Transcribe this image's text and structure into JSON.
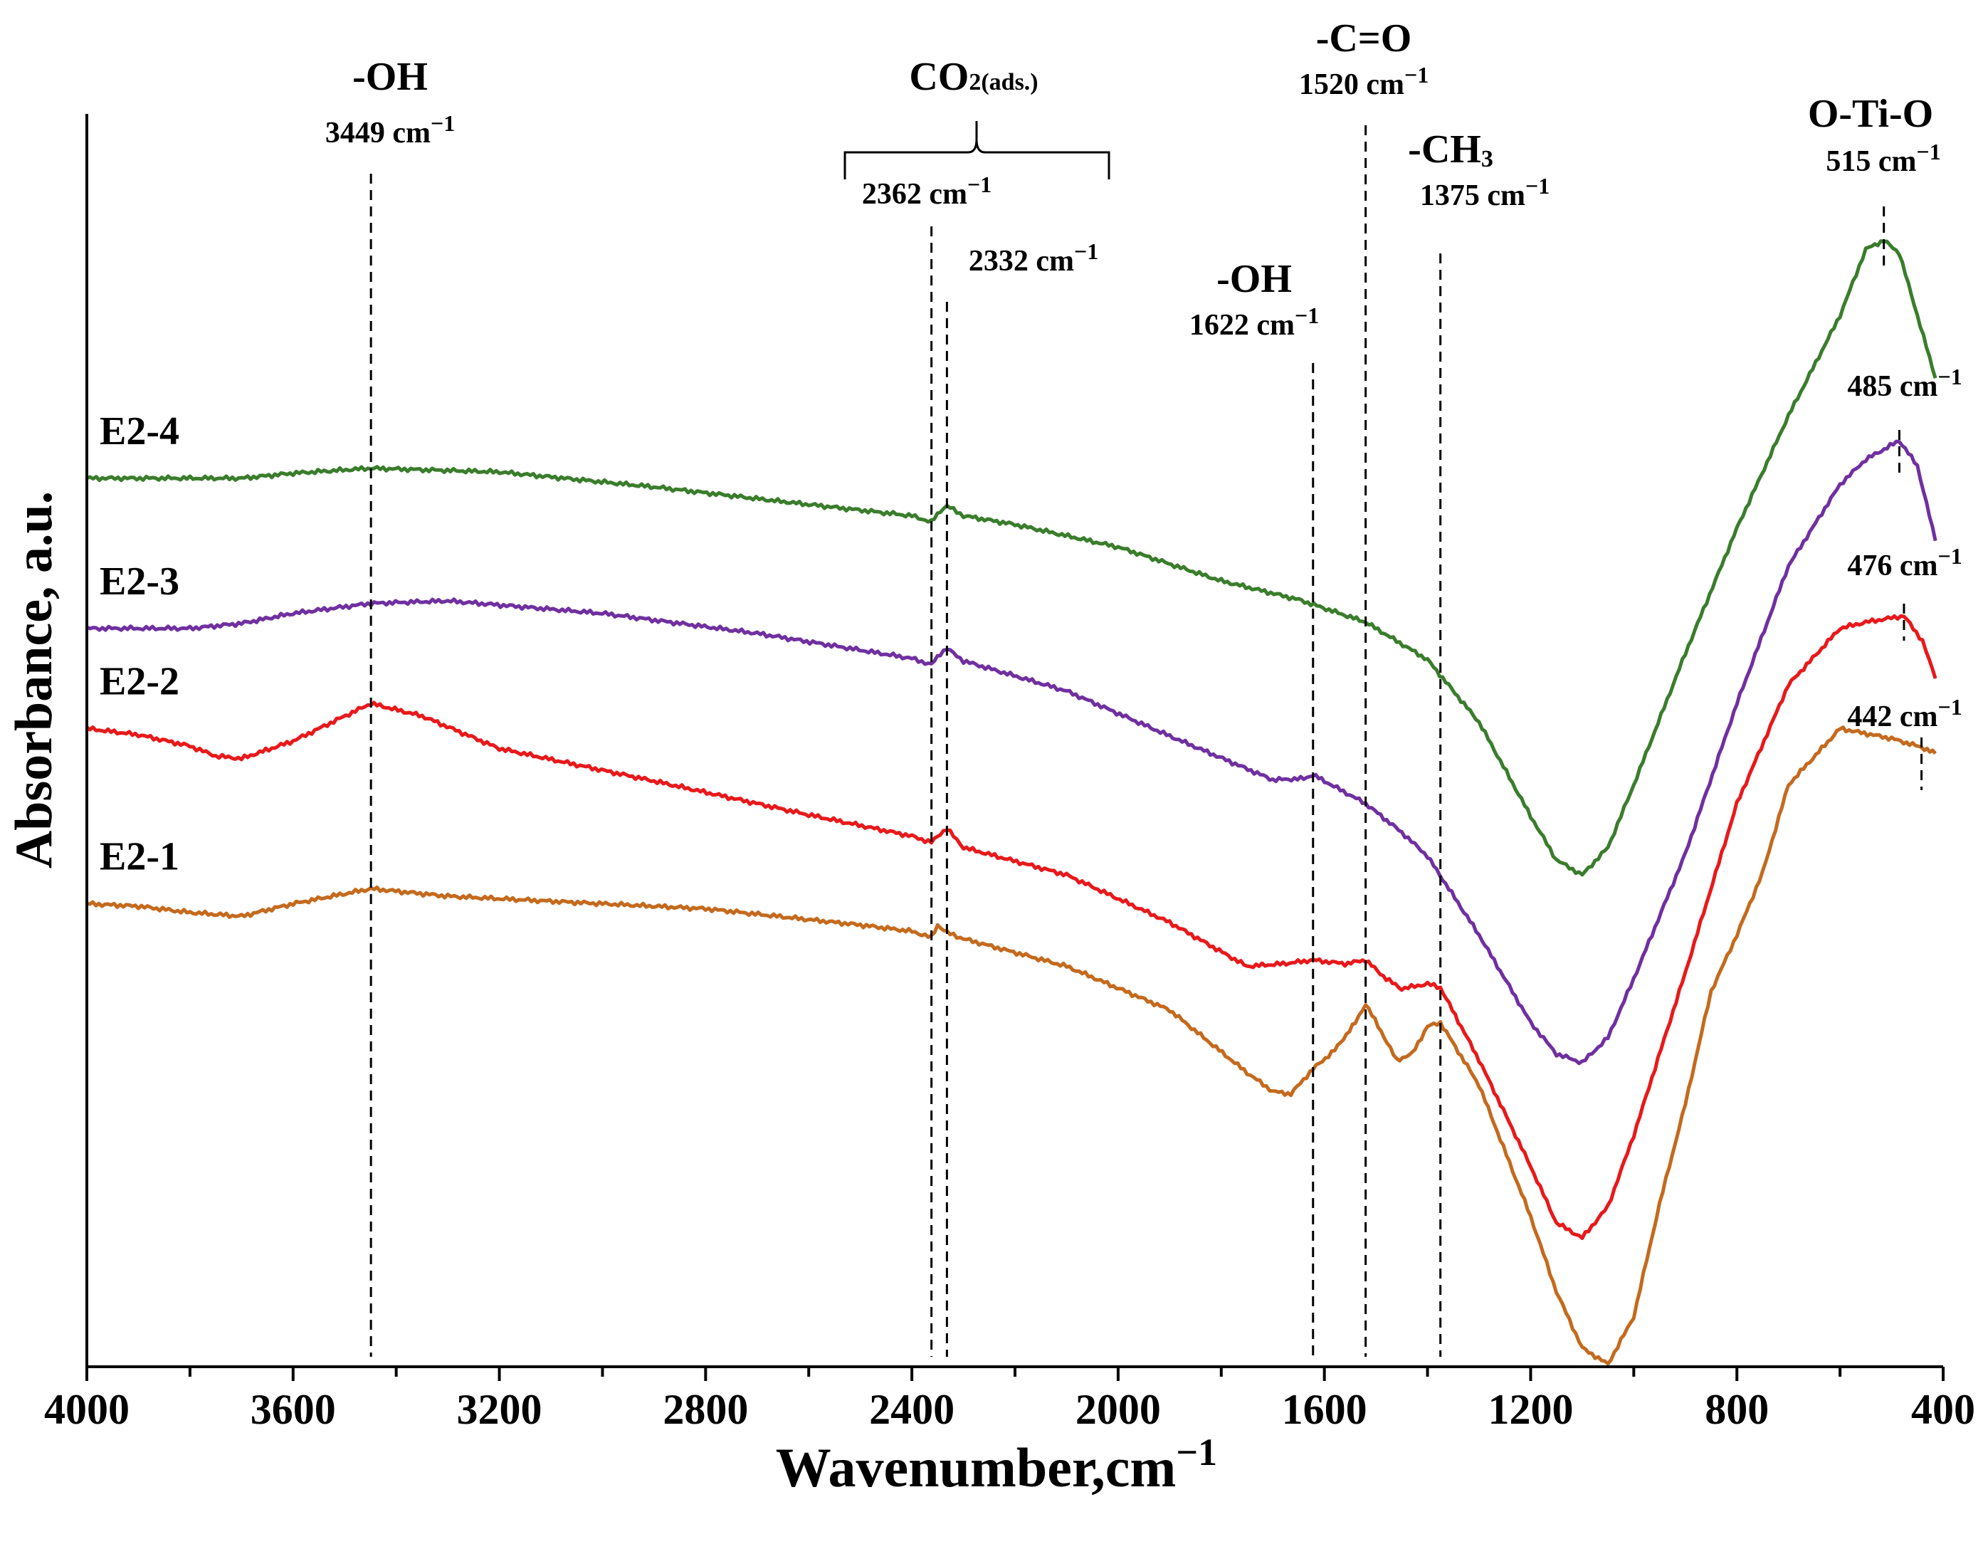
{
  "chart_data": {
    "type": "line",
    "title": "",
    "xlabel": "Wavenumber,cm",
    "xlabel_superscript": "−1",
    "ylabel": "Absorbance, a.u.",
    "xlim": [
      4000,
      400
    ],
    "ylim": [
      0,
      100
    ],
    "x_ticks": [
      4000,
      3600,
      3200,
      2800,
      2400,
      2000,
      1600,
      1200,
      800,
      400
    ],
    "x_tick_labels": [
      "4000",
      "3600",
      "3200",
      "2800",
      "2400",
      "2000",
      "1600",
      "1200",
      "800",
      "400"
    ],
    "y_ticks_shown": false,
    "grid": false,
    "legend": "inline labels at left",
    "series": [
      {
        "name": "E2-4",
        "color": "#3a7d2c",
        "points": [
          [
            4000,
            71
          ],
          [
            3800,
            71
          ],
          [
            3700,
            71
          ],
          [
            3600,
            71.4
          ],
          [
            3449,
            71.8
          ],
          [
            3200,
            71.5
          ],
          [
            2900,
            70.3
          ],
          [
            2600,
            68.9
          ],
          [
            2400,
            68.0
          ],
          [
            2362,
            67.5
          ],
          [
            2345,
            68.4
          ],
          [
            2332,
            68.8
          ],
          [
            2300,
            68.0
          ],
          [
            2200,
            67.3
          ],
          [
            2000,
            65.5
          ],
          [
            1800,
            62.8
          ],
          [
            1650,
            61.3
          ],
          [
            1520,
            59.5
          ],
          [
            1400,
            56.5
          ],
          [
            1300,
            51.5
          ],
          [
            1200,
            44.0
          ],
          [
            1150,
            40.5
          ],
          [
            1100,
            39.3
          ],
          [
            1050,
            41.5
          ],
          [
            1000,
            46.5
          ],
          [
            900,
            57.0
          ],
          [
            800,
            67.0
          ],
          [
            700,
            76.0
          ],
          [
            600,
            84.0
          ],
          [
            550,
            89.3
          ],
          [
            515,
            90.0
          ],
          [
            485,
            89.0
          ],
          [
            450,
            84.0
          ],
          [
            415,
            79.0
          ]
        ]
      },
      {
        "name": "E2-3",
        "color": "#7030a0",
        "points": [
          [
            4000,
            59
          ],
          [
            3800,
            59
          ],
          [
            3700,
            59.4
          ],
          [
            3600,
            60.2
          ],
          [
            3449,
            61.0
          ],
          [
            3300,
            61.2
          ],
          [
            3000,
            60.2
          ],
          [
            2700,
            58.6
          ],
          [
            2400,
            56.6
          ],
          [
            2362,
            56.1
          ],
          [
            2345,
            57.0
          ],
          [
            2332,
            57.4
          ],
          [
            2300,
            56.4
          ],
          [
            2100,
            54.0
          ],
          [
            1900,
            50.4
          ],
          [
            1700,
            46.9
          ],
          [
            1640,
            47.0
          ],
          [
            1622,
            47.3
          ],
          [
            1600,
            46.8
          ],
          [
            1520,
            45.0
          ],
          [
            1450,
            42.7
          ],
          [
            1400,
            40.8
          ],
          [
            1300,
            34.5
          ],
          [
            1200,
            27.5
          ],
          [
            1150,
            25.0
          ],
          [
            1100,
            24.3
          ],
          [
            1050,
            26.3
          ],
          [
            1000,
            31.0
          ],
          [
            900,
            41.0
          ],
          [
            800,
            53.0
          ],
          [
            700,
            64.0
          ],
          [
            600,
            70.5
          ],
          [
            550,
            72.5
          ],
          [
            485,
            74.0
          ],
          [
            450,
            72.0
          ],
          [
            415,
            66.0
          ]
        ]
      },
      {
        "name": "E2-2",
        "color": "#e8191b",
        "points": [
          [
            4000,
            51
          ],
          [
            3900,
            50.5
          ],
          [
            3800,
            49.6
          ],
          [
            3750,
            48.8
          ],
          [
            3700,
            48.6
          ],
          [
            3600,
            50.0
          ],
          [
            3449,
            53.0
          ],
          [
            3350,
            52.0
          ],
          [
            3200,
            49.4
          ],
          [
            2900,
            46.8
          ],
          [
            2600,
            44.1
          ],
          [
            2400,
            42.4
          ],
          [
            2362,
            41.9
          ],
          [
            2345,
            42.6
          ],
          [
            2332,
            43.0
          ],
          [
            2300,
            41.5
          ],
          [
            2100,
            39.3
          ],
          [
            1900,
            35.5
          ],
          [
            1750,
            32.0
          ],
          [
            1680,
            32.2
          ],
          [
            1622,
            32.5
          ],
          [
            1560,
            32.2
          ],
          [
            1520,
            32.5
          ],
          [
            1480,
            31.0
          ],
          [
            1450,
            30.2
          ],
          [
            1400,
            30.6
          ],
          [
            1375,
            30.3
          ],
          [
            1300,
            24.5
          ],
          [
            1200,
            16.0
          ],
          [
            1150,
            11.5
          ],
          [
            1100,
            10.3
          ],
          [
            1050,
            12.8
          ],
          [
            1000,
            18.5
          ],
          [
            900,
            31.5
          ],
          [
            800,
            45.0
          ],
          [
            700,
            54.5
          ],
          [
            600,
            59.0
          ],
          [
            550,
            59.5
          ],
          [
            476,
            60.0
          ],
          [
            440,
            58.0
          ],
          [
            415,
            55.0
          ]
        ]
      },
      {
        "name": "E2-1",
        "color": "#c46a1e",
        "points": [
          [
            4000,
            37
          ],
          [
            3900,
            36.8
          ],
          [
            3800,
            36.3
          ],
          [
            3700,
            36.0
          ],
          [
            3600,
            37.0
          ],
          [
            3449,
            38.2
          ],
          [
            3300,
            37.6
          ],
          [
            3000,
            37.0
          ],
          [
            2800,
            36.6
          ],
          [
            2500,
            35.3
          ],
          [
            2400,
            34.8
          ],
          [
            2362,
            34.3
          ],
          [
            2350,
            35.3
          ],
          [
            2332,
            34.7
          ],
          [
            2300,
            34.2
          ],
          [
            2100,
            32.0
          ],
          [
            1900,
            28.5
          ],
          [
            1750,
            23.5
          ],
          [
            1700,
            22.0
          ],
          [
            1665,
            21.8
          ],
          [
            1622,
            23.8
          ],
          [
            1580,
            25.3
          ],
          [
            1540,
            27.5
          ],
          [
            1520,
            29.0
          ],
          [
            1490,
            26.8
          ],
          [
            1460,
            24.5
          ],
          [
            1430,
            25.0
          ],
          [
            1400,
            27.2
          ],
          [
            1375,
            27.5
          ],
          [
            1300,
            22.5
          ],
          [
            1200,
            12.0
          ],
          [
            1150,
            6.0
          ],
          [
            1100,
            1.5
          ],
          [
            1050,
            0.2
          ],
          [
            1000,
            4.0
          ],
          [
            950,
            13.0
          ],
          [
            900,
            21.0
          ],
          [
            850,
            30.0
          ],
          [
            800,
            34.5
          ],
          [
            750,
            39.5
          ],
          [
            700,
            46.5
          ],
          [
            600,
            51.0
          ],
          [
            500,
            50.2
          ],
          [
            442,
            49.5
          ],
          [
            415,
            49.0
          ]
        ]
      }
    ],
    "reference_lines": [
      {
        "x": 3449,
        "label": "3449 cm",
        "sup": "−1"
      },
      {
        "x": 2362,
        "label": "2362 cm",
        "sup": "−1"
      },
      {
        "x": 2332,
        "label": "2332 cm",
        "sup": "−1"
      },
      {
        "x": 1622,
        "label": "1622 cm",
        "sup": "−1"
      },
      {
        "x": 1520,
        "label": "1520 cm",
        "sup": "−1"
      },
      {
        "x": 1375,
        "label": "1375 cm",
        "sup": "−1"
      }
    ],
    "peak_markers": [
      {
        "x": 515,
        "label": "515 cm",
        "sup": "−1"
      },
      {
        "x": 485,
        "label": "485 cm",
        "sup": "−1"
      },
      {
        "x": 476,
        "label": "476 cm",
        "sup": "−1"
      },
      {
        "x": 442,
        "label": "442 cm",
        "sup": "−1"
      }
    ],
    "group_labels": [
      {
        "id": "oh1",
        "text": "-OH"
      },
      {
        "id": "co2",
        "text": "CO",
        "sub": "2(ads.)"
      },
      {
        "id": "oh2",
        "text": "-OH"
      },
      {
        "id": "co",
        "text": "-C=O"
      },
      {
        "id": "ch3",
        "text": "-CH",
        "sub": "3"
      },
      {
        "id": "otio",
        "text": "O-Ti-O"
      }
    ]
  }
}
